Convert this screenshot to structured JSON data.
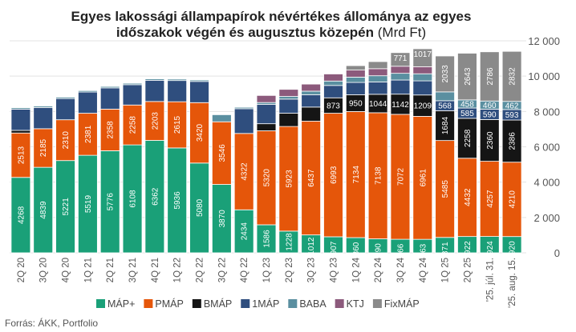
{
  "chart_data": {
    "type": "bar",
    "stacked": true,
    "title_line1": "Egyes lakossági állampapírok névértékes állománya az egyes",
    "title_line2_bold": "időszakok végén és augusztus közepén",
    "title_line2_light": " (Mrd Ft)",
    "ylim": [
      0,
      12000
    ],
    "yticks": [
      "0",
      "2 000",
      "4 000",
      "6 000",
      "8 000",
      "10 000",
      "12 000"
    ],
    "grid": true,
    "legend_position": "bottom",
    "categories": [
      "2Q 20",
      "3Q 20",
      "4Q 20",
      "1Q 21",
      "2Q 21",
      "3Q 21",
      "4Q 21",
      "1Q 22",
      "2Q 22",
      "3Q 22",
      "4Q 22",
      "1Q 23",
      "2Q 23",
      "3Q 23",
      "4Q 23",
      "1Q 24",
      "2Q 24",
      "3Q 24",
      "4Q 24",
      "1Q 25",
      "2Q 25",
      "'25. júl. 31.",
      "'25. aug. 15."
    ],
    "series": [
      {
        "name": "MÁP+",
        "color": "#1aa078",
        "values": [
          4268,
          4839,
          5221,
          5519,
          5776,
          6108,
          6362,
          5936,
          5080,
          3870,
          2434,
          1586,
          1228,
          1012,
          907,
          860,
          790,
          766,
          763,
          871,
          922,
          924,
          920
        ],
        "labels": [
          "4268",
          "4839",
          "5221",
          "5519",
          "5776",
          "6108",
          "6362",
          "5936",
          "5080",
          "3870",
          "2434",
          "1586",
          "1228",
          "1012",
          "907",
          "860",
          "790",
          "766",
          "763",
          "871",
          "922",
          "924",
          "920"
        ]
      },
      {
        "name": "PMÁP",
        "color": "#e5560a",
        "values": [
          2513,
          2185,
          2310,
          2381,
          2358,
          2258,
          2203,
          2615,
          3420,
          3546,
          4322,
          5320,
          5923,
          6437,
          6993,
          7134,
          7138,
          7072,
          6961,
          5485,
          4432,
          4257,
          4210
        ],
        "labels": [
          "2513",
          "2185",
          "2310",
          "2381",
          "2358",
          "2258",
          "2203",
          "2615",
          "3420",
          "3546",
          "4322",
          "5320",
          "5923",
          "6437",
          "6993",
          "7134",
          "7138",
          "7072",
          "6961",
          "5485",
          "4432",
          "4257",
          "4210"
        ]
      },
      {
        "name": "BMÁP",
        "color": "#151515",
        "values": [
          150,
          0,
          0,
          0,
          0,
          0,
          0,
          0,
          0,
          0,
          0,
          400,
          750,
          800,
          873,
          950,
          1044,
          1142,
          1209,
          1684,
          2258,
          2360,
          2386
        ],
        "labels": [
          "",
          "",
          "",
          "",
          "",
          "",
          "",
          "",
          "",
          "",
          "",
          "",
          "",
          "",
          "873",
          "950",
          "1044",
          "1142",
          "1209",
          "1684",
          "2258",
          "2360",
          "2386"
        ]
      },
      {
        "name": "1MÁP",
        "color": "#2f4e7e",
        "values": [
          1200,
          1200,
          1200,
          1200,
          1200,
          1150,
          1200,
          1200,
          1200,
          0,
          1400,
          1100,
          800,
          700,
          700,
          700,
          700,
          800,
          800,
          568,
          585,
          590,
          593
        ],
        "labels": [
          "",
          "",
          "",
          "",
          "",
          "",
          "",
          "",
          "",
          "",
          "",
          "",
          "",
          "",
          "",
          "",
          "",
          "",
          "",
          "568",
          "585",
          "590",
          "593"
        ]
      },
      {
        "name": "BABA",
        "color": "#5a8fa0",
        "values": [
          80,
          80,
          80,
          80,
          80,
          80,
          80,
          80,
          80,
          400,
          80,
          100,
          150,
          200,
          250,
          300,
          350,
          380,
          400,
          500,
          458,
          460,
          462
        ],
        "labels": [
          "",
          "",
          "",
          "",
          "",
          "",
          "",
          "",
          "",
          "",
          "",
          "",
          "",
          "",
          "",
          "",
          "",
          "",
          "",
          "",
          "458",
          "460",
          "462"
        ]
      },
      {
        "name": "KTJ",
        "color": "#8c5a7c",
        "values": [
          0,
          0,
          0,
          0,
          0,
          0,
          0,
          0,
          0,
          0,
          0,
          400,
          400,
          400,
          400,
          400,
          400,
          400,
          400,
          0,
          0,
          0,
          0
        ],
        "labels": [
          "",
          "",
          "",
          "",
          "",
          "",
          "",
          "",
          "",
          "",
          "",
          "",
          "",
          "",
          "",
          "",
          "",
          "",
          "",
          "",
          "",
          "",
          ""
        ]
      },
      {
        "name": "FixMÁP",
        "color": "#8a8a8a",
        "values": [
          0,
          0,
          0,
          0,
          0,
          0,
          0,
          0,
          0,
          0,
          0,
          0,
          0,
          0,
          0,
          250,
          400,
          771,
          1017,
          2033,
          2643,
          2786,
          2832
        ],
        "labels": [
          "",
          "",
          "",
          "",
          "",
          "",
          "",
          "",
          "",
          "",
          "",
          "",
          "",
          "",
          "",
          "",
          "",
          "771",
          "1017",
          "2033",
          "2643",
          "2786",
          "2832"
        ]
      }
    ],
    "source": "Forrás: ÁKK, Portfolio"
  }
}
